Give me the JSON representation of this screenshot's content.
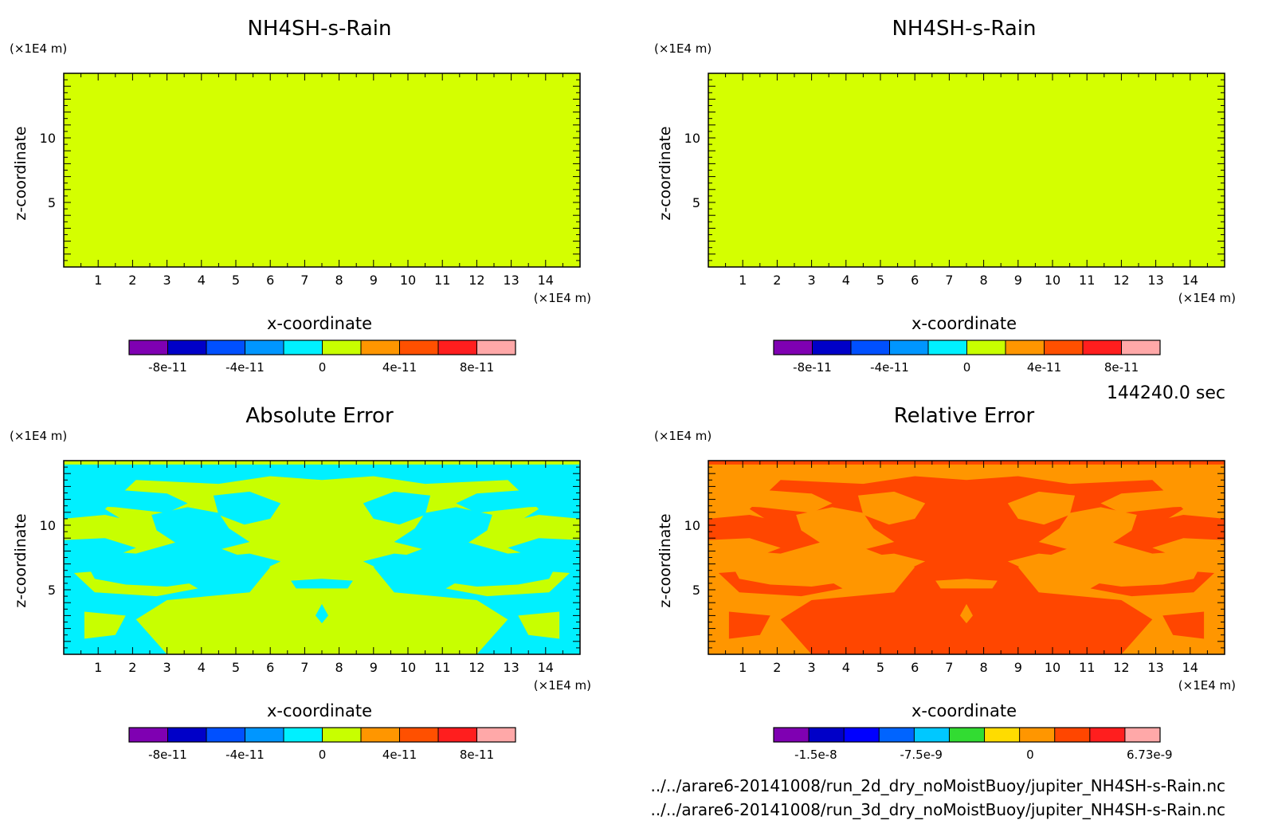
{
  "time_label": "144240.0 sec",
  "files": [
    "../../arare6-20141008/run_2d_dry_noMoistBuoy/jupiter_NH4SH-s-Rain.nc",
    "../../arare6-20141008/run_3d_dry_noMoistBuoy/jupiter_NH4SH-s-Rain.nc"
  ],
  "chart_data": [
    {
      "type": "heatmap",
      "title": "NH4SH-s-Rain",
      "xlabel": "x-coordinate",
      "ylabel": "z-coordinate",
      "x_unit": "(×1E4 m)",
      "y_unit": "(×1E4 m)",
      "x_ticks": [
        "1",
        "2",
        "3",
        "4",
        "5",
        "6",
        "7",
        "8",
        "9",
        "10",
        "11",
        "12",
        "13",
        "14"
      ],
      "y_ticks": [
        "5",
        "10"
      ],
      "xlim": [
        0,
        15
      ],
      "ylim": [
        0,
        15
      ],
      "field": "uniform",
      "field_value": 0,
      "colorbar": {
        "colors": [
          "#7f00b2",
          "#0000c8",
          "#0050ff",
          "#0096ff",
          "#00f0ff",
          "#c8ff00",
          "#ff9600",
          "#ff5000",
          "#ff1e1e",
          "#ffa8a8"
        ],
        "labels": [
          "-8e-11",
          "-4e-11",
          "0",
          "4e-11",
          "8e-11"
        ],
        "label_boundaries": [
          1,
          3,
          5,
          7,
          9
        ]
      }
    },
    {
      "type": "heatmap",
      "title": "NH4SH-s-Rain",
      "xlabel": "x-coordinate",
      "ylabel": "z-coordinate",
      "x_unit": "(×1E4 m)",
      "y_unit": "(×1E4 m)",
      "x_ticks": [
        "1",
        "2",
        "3",
        "4",
        "5",
        "6",
        "7",
        "8",
        "9",
        "10",
        "11",
        "12",
        "13",
        "14"
      ],
      "y_ticks": [
        "5",
        "10"
      ],
      "xlim": [
        0,
        15
      ],
      "ylim": [
        0,
        15
      ],
      "field": "uniform",
      "field_value": 0,
      "colorbar": {
        "colors": [
          "#7f00b2",
          "#0000c8",
          "#0050ff",
          "#0096ff",
          "#00f0ff",
          "#c8ff00",
          "#ff9600",
          "#ff5000",
          "#ff1e1e",
          "#ffa8a8"
        ],
        "labels": [
          "-8e-11",
          "-4e-11",
          "0",
          "4e-11",
          "8e-11"
        ],
        "label_boundaries": [
          1,
          3,
          5,
          7,
          9
        ]
      }
    },
    {
      "type": "heatmap",
      "title": "Absolute Error",
      "xlabel": "x-coordinate",
      "ylabel": "z-coordinate",
      "x_unit": "(×1E4 m)",
      "y_unit": "(×1E4 m)",
      "x_ticks": [
        "1",
        "2",
        "3",
        "4",
        "5",
        "6",
        "7",
        "8",
        "9",
        "10",
        "11",
        "12",
        "13",
        "14"
      ],
      "y_ticks": [
        "5",
        "10"
      ],
      "xlim": [
        0,
        15
      ],
      "ylim": [
        0,
        15
      ],
      "field": "symmetric-pattern",
      "levels_present": [
        -4e-11,
        0
      ],
      "colorbar": {
        "colors": [
          "#7f00b2",
          "#0000c8",
          "#0050ff",
          "#0096ff",
          "#00f0ff",
          "#c8ff00",
          "#ff9600",
          "#ff5000",
          "#ff1e1e",
          "#ffa8a8"
        ],
        "labels": [
          "-8e-11",
          "-4e-11",
          "0",
          "4e-11",
          "8e-11"
        ],
        "label_boundaries": [
          1,
          3,
          5,
          7,
          9
        ]
      }
    },
    {
      "type": "heatmap",
      "title": "Relative Error",
      "xlabel": "x-coordinate",
      "ylabel": "z-coordinate",
      "x_unit": "(×1E4 m)",
      "y_unit": "(×1E4 m)",
      "x_ticks": [
        "1",
        "2",
        "3",
        "4",
        "5",
        "6",
        "7",
        "8",
        "9",
        "10",
        "11",
        "12",
        "13",
        "14"
      ],
      "y_ticks": [
        "5",
        "10"
      ],
      "xlim": [
        0,
        15
      ],
      "ylim": [
        0,
        15
      ],
      "field": "symmetric-pattern",
      "levels_present": [
        0,
        6.73e-09
      ],
      "colorbar": {
        "colors": [
          "#7f00b2",
          "#0000c8",
          "#0000ff",
          "#0064ff",
          "#00c8ff",
          "#32dc32",
          "#ffdc00",
          "#ff9600",
          "#ff4600",
          "#ff1e1e",
          "#ffa8a8"
        ],
        "labels": [
          "-1.5e-8",
          "-7.5e-9",
          "0",
          "6.73e-9"
        ],
        "label_boundaries": [
          1.2,
          4.2,
          7.3,
          10.7
        ]
      }
    }
  ]
}
